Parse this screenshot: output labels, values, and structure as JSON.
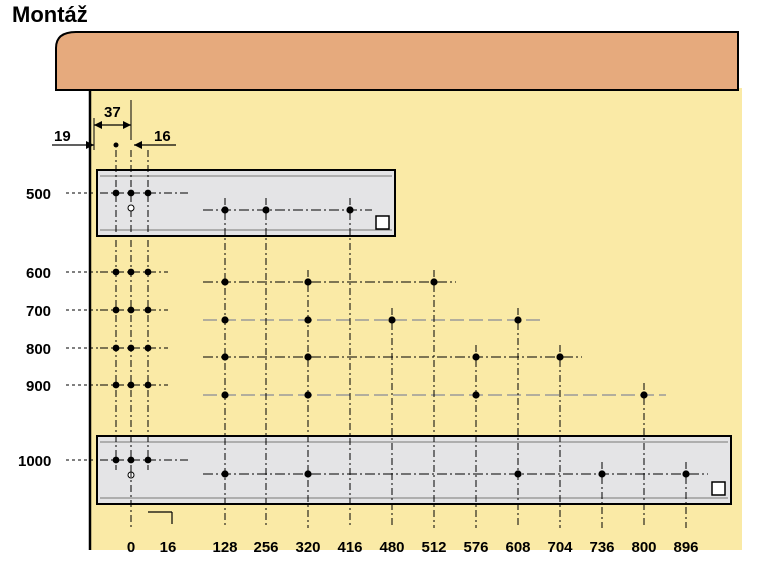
{
  "title": "Montáž",
  "colors": {
    "background": "#faeaa6",
    "worktop": "#e6aa7d",
    "rail": "#e4e4e6",
    "line": "#000000",
    "dashed": "#9a9a9a"
  },
  "top_dimensions": {
    "d1": "19",
    "d2": "37",
    "d3": "16"
  },
  "row_labels": [
    "500",
    "600",
    "700",
    "800",
    "900",
    "1000"
  ],
  "column_labels": [
    "0",
    "16",
    "128",
    "256",
    "320",
    "416",
    "480",
    "512",
    "576",
    "608",
    "704",
    "736",
    "800",
    "896"
  ],
  "rows": [
    {
      "length": "500",
      "holes": [
        "128",
        "256",
        "416"
      ]
    },
    {
      "length": "600",
      "holes": [
        "128",
        "320",
        "512"
      ]
    },
    {
      "length": "700",
      "holes": [
        "128",
        "320",
        "480",
        "608"
      ]
    },
    {
      "length": "800",
      "holes": [
        "128",
        "320",
        "576",
        "704"
      ]
    },
    {
      "length": "900",
      "holes": [
        "128",
        "320",
        "576",
        "800"
      ]
    },
    {
      "length": "1000",
      "holes": [
        "128",
        "320",
        "608",
        "736",
        "896"
      ]
    }
  ]
}
